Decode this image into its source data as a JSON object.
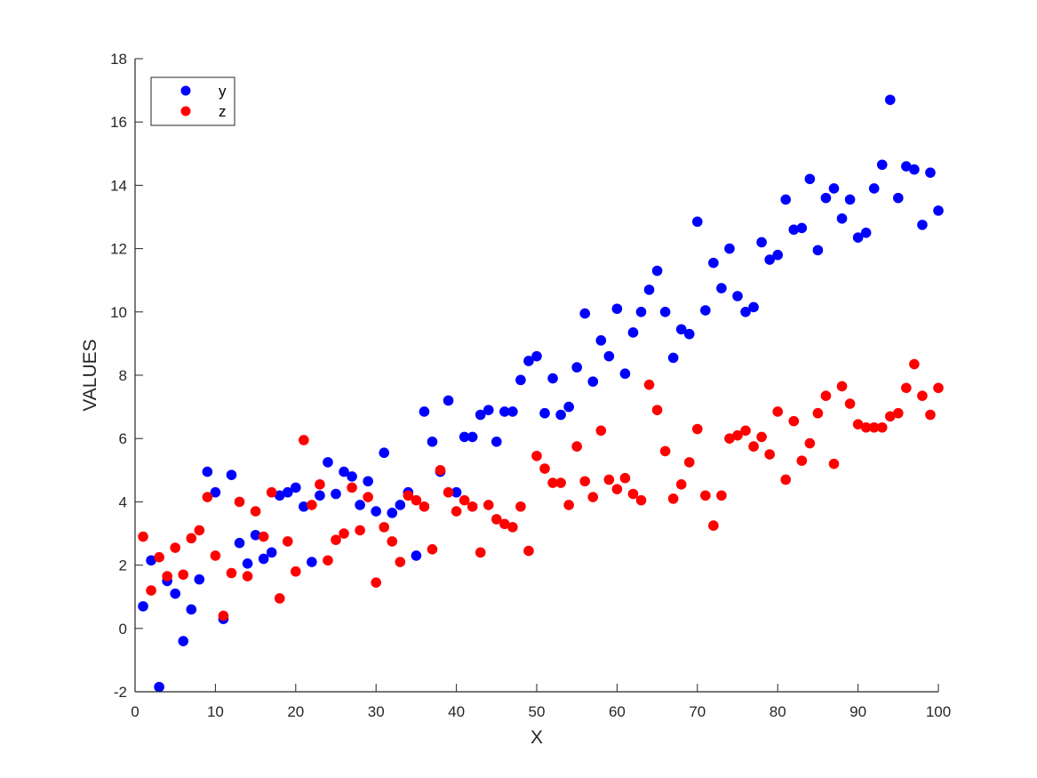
{
  "chart_data": {
    "type": "scatter",
    "title": "",
    "xlabel": "X",
    "ylabel": "VALUES",
    "xlim": [
      0,
      100
    ],
    "ylim": [
      -2,
      18
    ],
    "x_ticks": [
      0,
      10,
      20,
      30,
      40,
      50,
      60,
      70,
      80,
      90,
      100
    ],
    "y_ticks": [
      -2,
      0,
      2,
      4,
      6,
      8,
      10,
      12,
      14,
      16,
      18
    ],
    "grid": false,
    "legend_position": "upper left",
    "x": [
      1,
      2,
      3,
      4,
      5,
      6,
      7,
      8,
      9,
      10,
      11,
      12,
      13,
      14,
      15,
      16,
      17,
      18,
      19,
      20,
      21,
      22,
      23,
      24,
      25,
      26,
      27,
      28,
      29,
      30,
      31,
      32,
      33,
      34,
      35,
      36,
      37,
      38,
      39,
      40,
      41,
      42,
      43,
      44,
      45,
      46,
      47,
      48,
      49,
      50,
      51,
      52,
      53,
      54,
      55,
      56,
      57,
      58,
      59,
      60,
      61,
      62,
      63,
      64,
      65,
      66,
      67,
      68,
      69,
      70,
      71,
      72,
      73,
      74,
      75,
      76,
      77,
      78,
      79,
      80,
      81,
      82,
      83,
      84,
      85,
      86,
      87,
      88,
      89,
      90,
      91,
      92,
      93,
      94,
      95,
      96,
      97,
      98,
      99,
      100
    ],
    "series": [
      {
        "name": "y",
        "color": "#0000ff",
        "values": [
          0.7,
          2.15,
          -1.85,
          1.5,
          1.1,
          -0.4,
          0.6,
          1.55,
          4.95,
          4.3,
          0.3,
          4.85,
          2.7,
          2.05,
          2.95,
          2.2,
          2.4,
          4.2,
          4.3,
          4.45,
          3.85,
          2.1,
          4.2,
          5.25,
          4.25,
          4.95,
          4.8,
          3.9,
          4.65,
          3.7,
          5.55,
          3.65,
          3.9,
          4.3,
          2.3,
          6.85,
          5.9,
          4.95,
          7.2,
          4.3,
          6.05,
          6.05,
          6.75,
          6.9,
          5.9,
          6.85,
          6.85,
          7.85,
          8.45,
          8.6,
          6.8,
          7.9,
          6.75,
          7.0,
          8.25,
          9.95,
          7.8,
          9.1,
          8.6,
          10.1,
          8.05,
          9.35,
          10.0,
          10.7,
          11.3,
          10.0,
          8.55,
          9.45,
          9.3,
          12.85,
          10.05,
          11.55,
          10.75,
          12.0,
          10.5,
          10.0,
          10.15,
          12.2,
          11.65,
          11.8,
          13.55,
          12.6,
          12.65,
          14.2,
          11.95,
          13.6,
          13.9,
          12.95,
          13.55,
          12.35,
          12.5,
          13.9,
          14.65,
          16.7,
          13.6,
          14.6,
          14.5,
          12.75,
          14.4,
          13.2
        ]
      },
      {
        "name": "z",
        "color": "#ff0000",
        "values": [
          2.9,
          1.2,
          2.25,
          1.65,
          2.55,
          1.7,
          2.85,
          3.1,
          4.15,
          2.3,
          0.4,
          1.75,
          4.0,
          1.65,
          3.7,
          2.9,
          4.3,
          0.95,
          2.75,
          1.8,
          5.95,
          3.9,
          4.55,
          2.15,
          2.8,
          3.0,
          4.45,
          3.1,
          4.15,
          1.45,
          3.2,
          2.75,
          2.1,
          4.2,
          4.05,
          3.85,
          2.5,
          5.0,
          4.3,
          3.7,
          4.05,
          3.85,
          2.4,
          3.9,
          3.45,
          3.3,
          3.2,
          3.85,
          2.45,
          5.45,
          5.05,
          4.6,
          4.6,
          3.9,
          5.75,
          4.65,
          4.15,
          6.25,
          4.7,
          4.4,
          4.75,
          4.25,
          4.05,
          7.7,
          6.9,
          5.6,
          4.1,
          4.55,
          5.25,
          6.3,
          4.2,
          3.25,
          4.2,
          6.0,
          6.1,
          6.25,
          5.75,
          6.05,
          5.5,
          6.85,
          4.7,
          6.55,
          5.3,
          5.85,
          6.8,
          7.35,
          5.2,
          7.65,
          7.1,
          6.45,
          6.35,
          6.35,
          6.35,
          6.7,
          6.8,
          7.6,
          8.35,
          7.35,
          6.75,
          7.6
        ]
      }
    ]
  },
  "legend": {
    "items": [
      {
        "label": "y",
        "color": "#0000ff"
      },
      {
        "label": "z",
        "color": "#ff0000"
      }
    ]
  },
  "axes": {
    "xlabel": "X",
    "ylabel": "VALUES"
  }
}
